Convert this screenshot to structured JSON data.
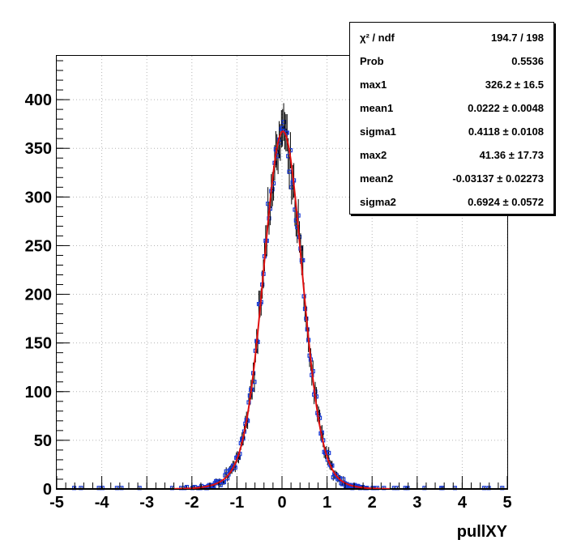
{
  "chart_data": {
    "type": "histogram",
    "xlabel": "pullXY",
    "ylabel": "",
    "xlim": [
      -5,
      5
    ],
    "ylim": [
      0,
      445
    ],
    "x_ticks": [
      "-5",
      "-4",
      "-3",
      "-2",
      "-1",
      "0",
      "1",
      "2",
      "3",
      "4",
      "5"
    ],
    "y_ticks": [
      "0",
      "50",
      "100",
      "150",
      "200",
      "250",
      "300",
      "350",
      "400"
    ],
    "grid": true,
    "stats_box": [
      {
        "label": "χ² / ndf",
        "value": "194.7 / 198"
      },
      {
        "label": "Prob",
        "value": "0.5536"
      },
      {
        "label": "max1",
        "value": "326.2 ± 16.5"
      },
      {
        "label": "mean1",
        "value": "0.0222 ± 0.0048"
      },
      {
        "label": "sigma1",
        "value": "0.4118 ± 0.0108"
      },
      {
        "label": "max2",
        "value": "41.36 ± 17.73"
      },
      {
        "label": "mean2",
        "value": "-0.03137 ± 0.02273"
      },
      {
        "label": "sigma2",
        "value": "0.6924 ± 0.0572"
      }
    ],
    "fit": {
      "name": "double gaussian",
      "max1": 326.2,
      "mean1": 0.0222,
      "sigma1": 0.4118,
      "max2": 41.36,
      "mean2": -0.03137,
      "sigma2": 0.6924
    },
    "bins": {
      "start": -5.0,
      "width": 0.025,
      "count": 400
    },
    "colors": {
      "markers": "#1a3bd6",
      "fit": "#e01010",
      "errors": "#000000",
      "grid": "#b4b4b4"
    }
  }
}
